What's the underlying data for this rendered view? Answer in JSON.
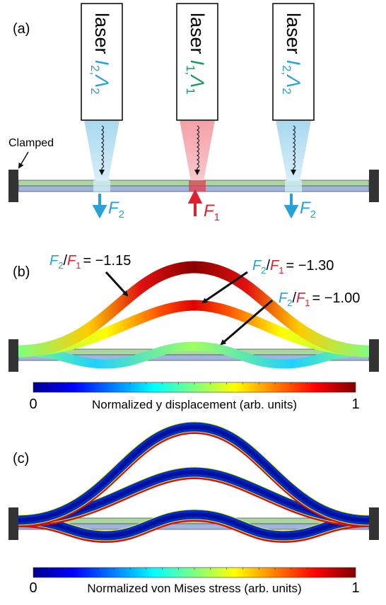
{
  "panels": {
    "a": "(a)",
    "b": "(b)",
    "c": "(c)"
  },
  "lasers": [
    {
      "label": "laser",
      "symbol": "I",
      "symbol_sub": "2,",
      "wavelength": "Λ",
      "wavelength_sub": "2"
    },
    {
      "label": "laser",
      "symbol": "I",
      "symbol_sub": "1,",
      "wavelength": "Λ",
      "wavelength_sub": "1"
    },
    {
      "label": "laser",
      "symbol": "I",
      "symbol_sub": "2,",
      "wavelength": "Λ",
      "wavelength_sub": "2"
    }
  ],
  "clamped": "Clamped",
  "forces": [
    {
      "symbol": "F",
      "sub": "2"
    },
    {
      "symbol": "F",
      "sub": "1"
    },
    {
      "symbol": "F",
      "sub": "2"
    }
  ],
  "ratios": [
    {
      "num": "F",
      "num_sub": "2",
      "slash": "/",
      "den": "F",
      "den_sub": "1",
      "value": "= −1.15"
    },
    {
      "num": "F",
      "num_sub": "2",
      "slash": "/",
      "den": "F",
      "den_sub": "1",
      "value": "= −1.30"
    },
    {
      "num": "F",
      "num_sub": "2",
      "slash": "/",
      "den": "F",
      "den_sub": "1",
      "value": "= −1.00"
    }
  ],
  "colorbars": [
    {
      "min": 0,
      "max": 1,
      "label": "Normalized y displacement (arb. units)"
    },
    {
      "min": 0,
      "max": 1,
      "label": "Normalized von Mises stress (arb. units)"
    }
  ]
}
